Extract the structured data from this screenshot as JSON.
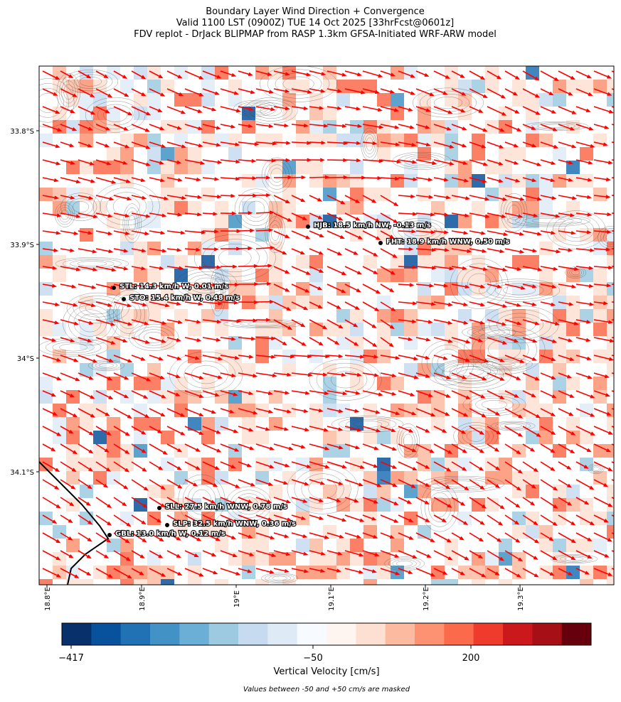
{
  "map": {
    "title": [
      "Boundary Layer Wind Direction + Convergence",
      "Valid 1100 LST (0900Z) TUE 14 Oct 2025 [33hrFcst@0601z]",
      "FDV replot - DrJack BLIPMAP from RASP 1.3km GFSA-Initiated WRF-ARW model"
    ],
    "lat_ticks": [
      {
        "value": -33.8,
        "label": "33.8°S"
      },
      {
        "value": -33.9,
        "label": "33.9°S"
      },
      {
        "value": -34.0,
        "label": "34°S"
      },
      {
        "value": -34.1,
        "label": "34.1°S"
      }
    ],
    "lon_ticks": [
      {
        "value": 18.8,
        "label": "18.8°E"
      },
      {
        "value": 18.9,
        "label": "18.9°E"
      },
      {
        "value": 19.0,
        "label": "19°E"
      },
      {
        "value": 19.1,
        "label": "19.1°E"
      },
      {
        "value": 19.2,
        "label": "19.2°E"
      },
      {
        "value": 19.3,
        "label": "19.3°E"
      }
    ],
    "stations": [
      "HJB: 18.5 km/h NW, -0.13 m/s",
      "FHT: 18.9 km/h WNW, 0.50 m/s",
      "STL: 14.3 km/h W, 0.01 m/s",
      "STO: 15.4 km/h W, 0.48 m/s",
      "SLL: 27.5 km/h WNW, 0.78 m/s",
      "SLP: 32.5 km/h WNW, 0.36 m/s",
      "GBL: 13.0 km/h W, 0.12 m/s"
    ],
    "arrow_color": "#ff0000",
    "colorbar": {
      "label": "Vertical Velocity [cm/s]",
      "colors": [
        "#08306b",
        "#08519c",
        "#2171b5",
        "#4292c6",
        "#6baed6",
        "#9ecae1",
        "#c6dbef",
        "#deebf7",
        "#f7fbff",
        "#fff5f0",
        "#fee0d2",
        "#fcbba1",
        "#fc9272",
        "#fb6a4a",
        "#ef3b2c",
        "#cb181d",
        "#a50f15",
        "#67000d"
      ],
      "ticks": [
        {
          "value": -417,
          "label": "−417"
        },
        {
          "value": -50,
          "label": "−50"
        },
        200
      ]
    },
    "note": "Values between -50 and +50 cm/s are masked"
  }
}
